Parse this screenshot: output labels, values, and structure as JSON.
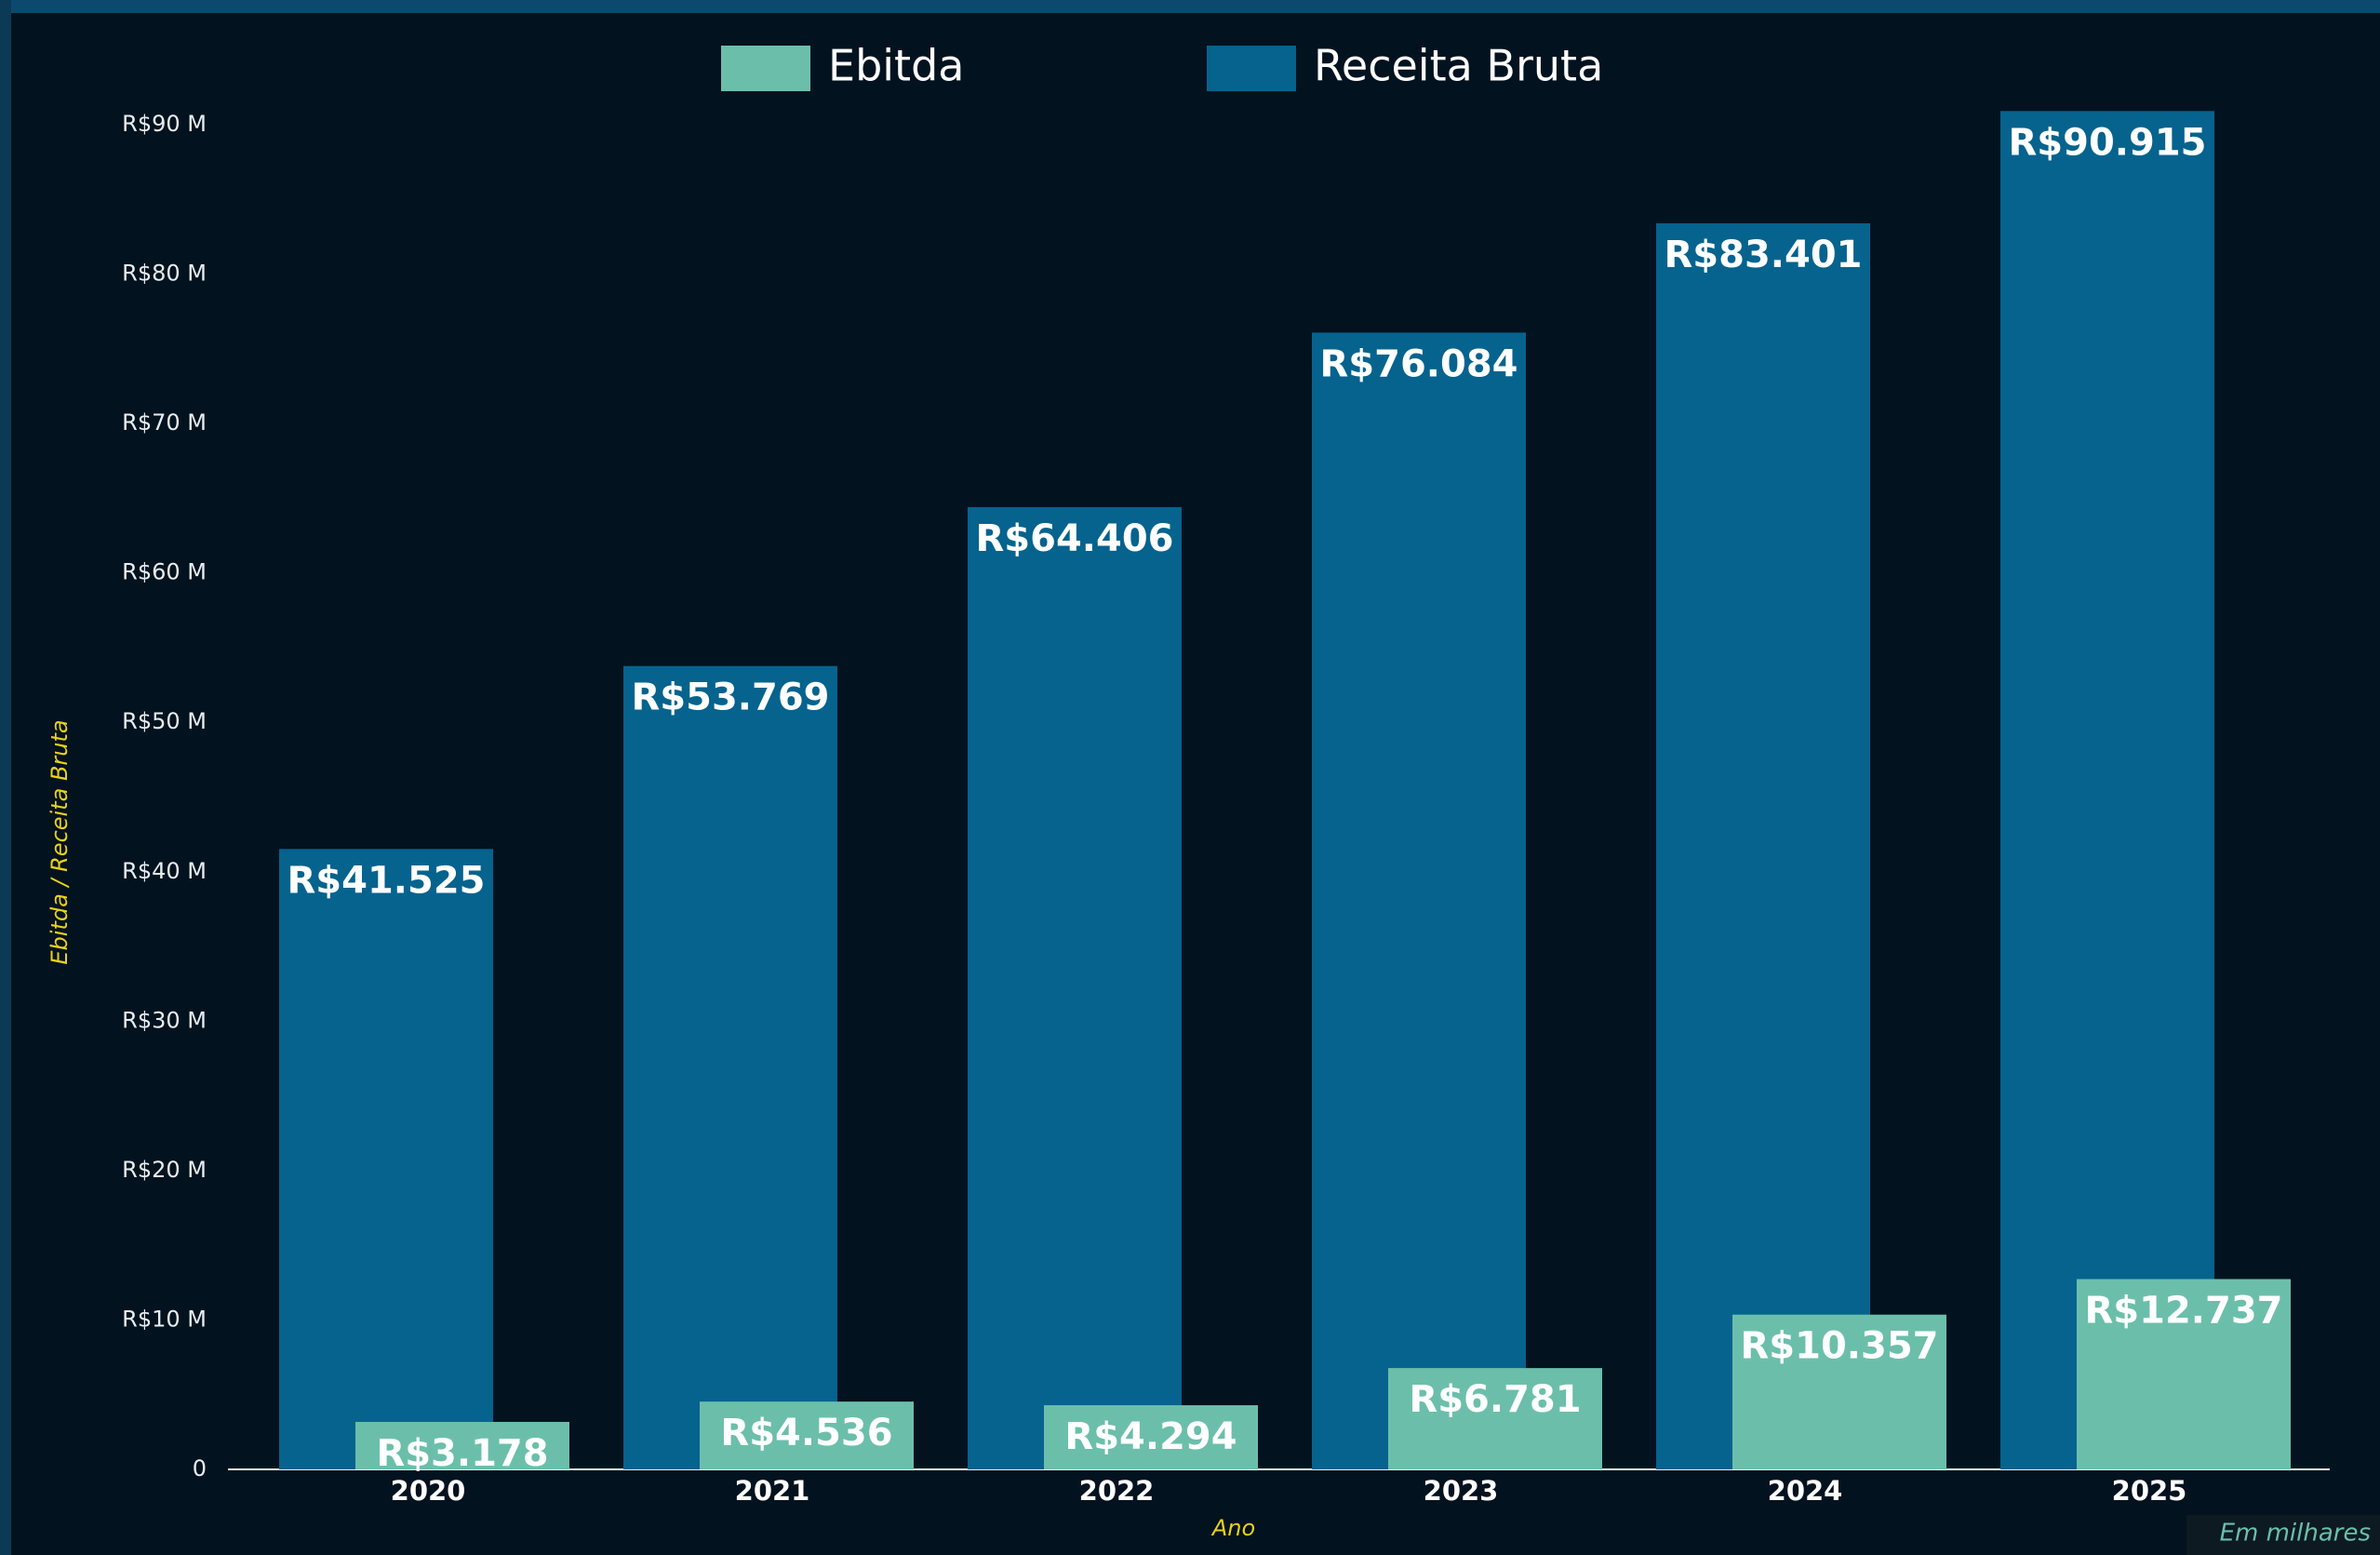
{
  "chart_data": {
    "type": "bar",
    "categories": [
      "2020",
      "2021",
      "2022",
      "2023",
      "2024",
      "2025"
    ],
    "series": [
      {
        "name": "Ebitda",
        "color": "#6bbfaa",
        "values": [
          3.178,
          4.536,
          4.294,
          6.781,
          10.357,
          12.737
        ],
        "value_labels": [
          "R$3.178",
          "R$4.536",
          "R$4.294",
          "R$6.781",
          "R$10.357",
          "R$12.737"
        ]
      },
      {
        "name": "Receita Bruta",
        "color": "#05638e",
        "values": [
          41.525,
          53.769,
          64.406,
          76.084,
          83.401,
          90.915
        ],
        "value_labels": [
          "R$41.525",
          "R$53.769",
          "R$64.406",
          "R$76.084",
          "R$83.401",
          "R$90.915"
        ]
      }
    ],
    "ylim": [
      0,
      90
    ],
    "yticks": [
      0,
      {
        "value": 10,
        "label": "R$10 M"
      },
      {
        "value": 20,
        "label": "R$20 M"
      },
      {
        "value": 30,
        "label": "R$30 M"
      },
      {
        "value": 40,
        "label": "R$40 M"
      },
      {
        "value": 50,
        "label": "R$50 M"
      },
      {
        "value": 60,
        "label": "R$60 M"
      },
      {
        "value": 70,
        "label": "R$70 M"
      },
      {
        "value": 80,
        "label": "R$80 M"
      },
      {
        "value": 90,
        "label": "R$90 M"
      }
    ],
    "ylabel": "Ebitda / Receita Bruta",
    "xlabel": "Ano",
    "annotation": "Em milhares",
    "grid": false
  }
}
